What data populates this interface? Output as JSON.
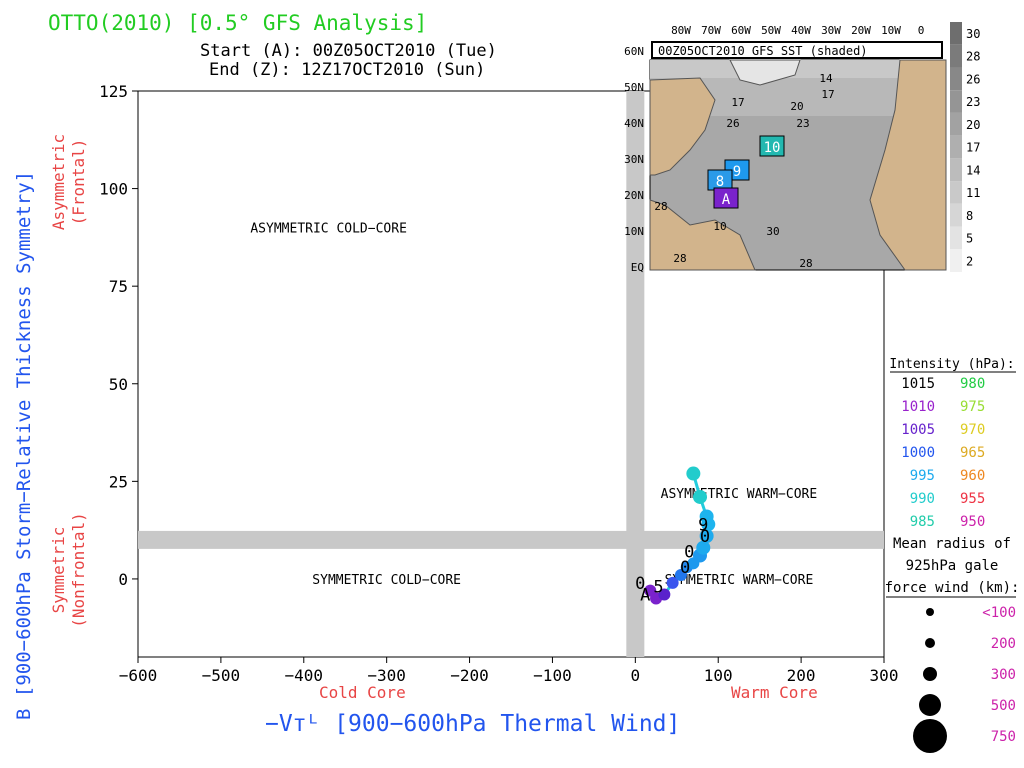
{
  "title": "OTTO(2010) [0.5° GFS Analysis]",
  "start_line": "Start (A): 00Z05OCT2010 (Tue)",
  "end_line": "End (Z): 12Z17OCT2010 (Sun)",
  "colors": {
    "title": "#22cc22",
    "axis_label": "#2255ee",
    "sub_label": "#e84545",
    "track": "#22ccdd",
    "band": "#c8c8c8"
  },
  "chart_data": {
    "type": "scatter",
    "xlabel": "−Vᴛᴸ [900−600hPa Thermal Wind]",
    "ylabel": "B [900−600hPa Storm−Relative Thickness Symmetry]",
    "x_side_labels": {
      "left": "Cold Core",
      "right": "Warm Core"
    },
    "y_side_labels": {
      "top": [
        "Asymmetric",
        "(Frontal)"
      ],
      "bottom": [
        "Symmetric",
        "(Nonfrontal)"
      ]
    },
    "xlim": [
      -600,
      300
    ],
    "ylim": [
      -20,
      125
    ],
    "x_ticks": [
      -600,
      -500,
      -400,
      -300,
      -200,
      -100,
      0,
      100,
      200,
      300
    ],
    "x_tick_labels": [
      "−600",
      "−500",
      "−400",
      "−300",
      "−200",
      "−100",
      "0",
      "100",
      "200",
      "300"
    ],
    "y_ticks": [
      0,
      25,
      50,
      75,
      100,
      125
    ],
    "y_tick_labels": [
      "0",
      "25",
      "50",
      "75",
      "100",
      "125"
    ],
    "quadrants": [
      {
        "label": "ASYMMETRIC COLD−CORE",
        "x": -370,
        "y": 90
      },
      {
        "label": "ASYMMETRIC WARM−CORE",
        "x": 125,
        "y": 22
      },
      {
        "label": "SYMMETRIC COLD−CORE",
        "x": -300,
        "y": 0
      },
      {
        "label": "SYMMETRIC WARM−CORE",
        "x": 125,
        "y": 0
      }
    ],
    "track": [
      {
        "x": 18,
        "y": -3,
        "color": "#7a22cc",
        "r": 6
      },
      {
        "x": 25,
        "y": -5,
        "color": "#7a22cc",
        "r": 6
      },
      {
        "x": 35,
        "y": -4,
        "color": "#5a22cc",
        "r": 6
      },
      {
        "x": 45,
        "y": -1,
        "color": "#3a55ee",
        "r": 6
      },
      {
        "x": 55,
        "y": 1,
        "color": "#2277ee",
        "r": 6
      },
      {
        "x": 62,
        "y": 3,
        "color": "#2288ee",
        "r": 6
      },
      {
        "x": 70,
        "y": 4,
        "color": "#1e99ee",
        "r": 6
      },
      {
        "x": 78,
        "y": 6,
        "color": "#1e99ee",
        "r": 7
      },
      {
        "x": 82,
        "y": 8,
        "color": "#1eaaee",
        "r": 7
      },
      {
        "x": 86,
        "y": 11,
        "color": "#1eaaee",
        "r": 7
      },
      {
        "x": 88,
        "y": 14,
        "color": "#1eb4ee",
        "r": 7
      },
      {
        "x": 86,
        "y": 16,
        "color": "#1eb4ee",
        "r": 7
      },
      {
        "x": 78,
        "y": 21,
        "color": "#22cccc",
        "r": 7
      },
      {
        "x": 70,
        "y": 27,
        "color": "#22cccc",
        "r": 7
      }
    ],
    "track_labels": [
      {
        "text": "A",
        "x": 12,
        "y": -4
      },
      {
        "text": "0",
        "x": 6,
        "y": -1
      },
      {
        "text": "5",
        "x": 28,
        "y": -2
      },
      {
        "text": "0",
        "x": 60,
        "y": 3
      },
      {
        "text": "0",
        "x": 65,
        "y": 7
      },
      {
        "text": "9",
        "x": 82,
        "y": 14
      },
      {
        "text": "0",
        "x": 84,
        "y": 11
      }
    ]
  },
  "inset": {
    "title": "00Z05OCT2010 GFS SST (shaded)",
    "lon_labels": [
      "80W",
      "70W",
      "60W",
      "50W",
      "40W",
      "30W",
      "20W",
      "10W",
      "0"
    ],
    "lat_labels": [
      "60N",
      "50N",
      "40N",
      "30N",
      "20N",
      "10N",
      "EQ"
    ],
    "contour_labels": [
      "14",
      "17",
      "20",
      "23",
      "26",
      "17",
      "28",
      "30",
      "28",
      "10",
      "28"
    ],
    "colorbar": [
      "30",
      "28",
      "26",
      "23",
      "20",
      "17",
      "14",
      "11",
      "8",
      "5",
      "2"
    ],
    "markers": [
      {
        "text": "10",
        "color": "#22b8b0"
      },
      {
        "text": "9",
        "color": "#1e99ee"
      },
      {
        "text": "8",
        "color": "#2a9ae8"
      },
      {
        "text": "A",
        "color": "#7a22cc"
      }
    ]
  },
  "legend": {
    "title": "Intensity (hPa):",
    "rows": [
      {
        "left": "1015",
        "left_color": "#000000",
        "right": "980",
        "right_color": "#22cc44"
      },
      {
        "left": "1010",
        "left_color": "#9922cc",
        "right": "975",
        "right_color": "#99dd33"
      },
      {
        "left": "1005",
        "left_color": "#6622cc",
        "right": "970",
        "right_color": "#ddcc22"
      },
      {
        "left": "1000",
        "left_color": "#2255ee",
        "right": "965",
        "right_color": "#ddaa22"
      },
      {
        "left": "995",
        "left_color": "#1eaaee",
        "right": "960",
        "right_color": "#ee8822"
      },
      {
        "left": "990",
        "left_color": "#22cccc",
        "right": "955",
        "right_color": "#ee3344"
      },
      {
        "left": "985",
        "left_color": "#22ccaa",
        "right": "950",
        "right_color": "#cc22aa"
      }
    ],
    "radius_title": [
      "Mean radius of",
      "925hPa gale",
      "force wind (km):"
    ],
    "radius_items": [
      {
        "label": "<100",
        "r": 4
      },
      {
        "label": "200",
        "r": 5
      },
      {
        "label": "300",
        "r": 7
      },
      {
        "label": "500",
        "r": 11
      },
      {
        "label": "750",
        "r": 17
      }
    ],
    "radius_color": "#cc22aa"
  }
}
